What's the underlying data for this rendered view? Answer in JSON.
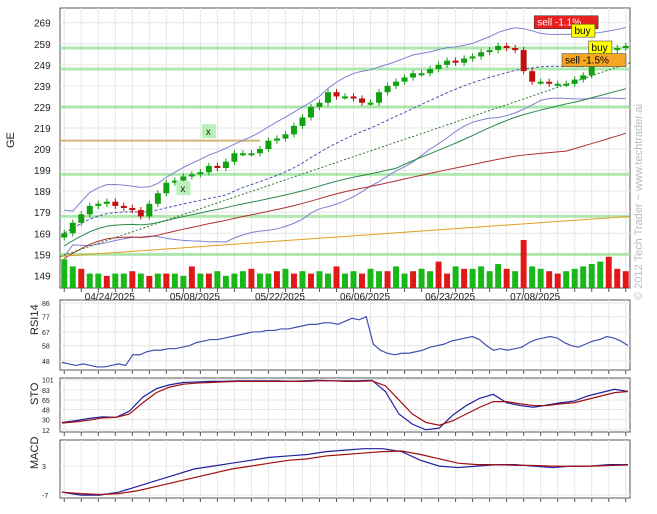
{
  "watermark": "© 2012 Tech Trader ~ www.techtrader.ai",
  "chart_data": [
    {
      "type": "candlestick",
      "ylabel": "GE",
      "yticks": [
        149,
        159,
        169,
        179,
        189,
        199,
        209,
        219,
        229,
        239,
        249,
        259,
        269
      ],
      "ylim": [
        143,
        276
      ],
      "date_labels": [
        "04/24/2025",
        "05/08/2025",
        "05/22/2025",
        "06/06/2025",
        "06/23/2025",
        "07/08/2025"
      ],
      "date_positions": [
        5,
        15,
        25,
        35,
        45,
        55
      ],
      "n_bars": 67,
      "close": [
        169,
        174,
        178,
        182,
        183,
        184,
        182,
        181,
        180,
        177,
        183,
        188,
        193,
        194,
        196,
        197,
        198,
        201,
        200,
        203,
        207,
        207,
        207,
        209,
        213,
        214,
        216,
        220,
        224,
        229,
        231,
        236,
        234,
        234,
        233,
        231,
        231,
        236,
        239,
        241,
        243,
        245,
        245,
        247,
        249,
        251,
        250,
        252,
        253,
        255,
        256,
        258,
        257,
        256,
        246,
        241,
        241,
        240,
        240,
        240,
        242,
        244,
        252,
        253,
        256,
        257,
        258
      ],
      "volume_color": [
        "green",
        "green",
        "red",
        "green",
        "green",
        "red",
        "green",
        "green",
        "red",
        "green",
        "red",
        "green",
        "red",
        "green",
        "green",
        "red",
        "green",
        "red",
        "green",
        "green",
        "green",
        "green",
        "red",
        "green",
        "green",
        "red",
        "green",
        "red",
        "green",
        "red",
        "green",
        "green",
        "red",
        "green",
        "green",
        "red",
        "green",
        "green",
        "red",
        "green",
        "green",
        "red",
        "green",
        "green",
        "red",
        "red",
        "green",
        "red",
        "green",
        "green",
        "green",
        "green",
        "red",
        "green",
        "red",
        "green",
        "green",
        "red",
        "red",
        "green",
        "green",
        "green",
        "green",
        "green",
        "red",
        "red",
        "red"
      ],
      "volume_level": [
        0.6,
        0.45,
        0.4,
        0.3,
        0.3,
        0.25,
        0.3,
        0.3,
        0.35,
        0.3,
        0.25,
        0.3,
        0.3,
        0.3,
        0.25,
        0.45,
        0.3,
        0.3,
        0.35,
        0.25,
        0.3,
        0.35,
        0.4,
        0.3,
        0.3,
        0.35,
        0.4,
        0.3,
        0.35,
        0.3,
        0.35,
        0.3,
        0.45,
        0.3,
        0.35,
        0.3,
        0.4,
        0.35,
        0.35,
        0.45,
        0.3,
        0.35,
        0.4,
        0.35,
        0.55,
        0.3,
        0.45,
        0.4,
        0.4,
        0.45,
        0.35,
        0.5,
        0.4,
        0.35,
        1.0,
        0.45,
        0.4,
        0.35,
        0.3,
        0.35,
        0.4,
        0.45,
        0.5,
        0.55,
        0.65,
        0.4,
        0.35
      ],
      "support_lines": [
        159,
        177,
        197,
        229,
        247,
        257
      ],
      "annotations": [
        {
          "label": "sell -1.1%",
          "bg": "#e82020",
          "fg": "#ffffff",
          "at_bar": 59,
          "y": 269
        },
        {
          "label": "buy",
          "bg": "#ffff00",
          "fg": "#000000",
          "at_bar": 61,
          "y": 265
        },
        {
          "label": "buy",
          "bg": "#ffff00",
          "fg": "#000000",
          "at_bar": 63,
          "y": 257
        },
        {
          "label": "sell -1.5%",
          "bg": "#f5a623",
          "fg": "#000000",
          "at_bar": 63,
          "y": 251
        }
      ],
      "markers": [
        {
          "label": "x",
          "at_bar": 17,
          "y": 217
        },
        {
          "label": "x",
          "at_bar": 14,
          "y": 190
        }
      ]
    },
    {
      "type": "line",
      "ylabel": "RSI14",
      "yticks": [
        48,
        58,
        67,
        77,
        86
      ],
      "ylim": [
        42,
        88
      ],
      "values": [
        47,
        46,
        45,
        46,
        45,
        44,
        44,
        45,
        46,
        45,
        52,
        52,
        54,
        55,
        55,
        56,
        56,
        57,
        58,
        60,
        61,
        62,
        62,
        63,
        64,
        65,
        66,
        67,
        67,
        68,
        68,
        69,
        69,
        70,
        71,
        72,
        72,
        73,
        73,
        72,
        74,
        76,
        75,
        77,
        59,
        55,
        53,
        52,
        53,
        53,
        54,
        55,
        57,
        58,
        59,
        61,
        62,
        63,
        64,
        62,
        58,
        55,
        56,
        55,
        56,
        57,
        60,
        62,
        63,
        64,
        63,
        60,
        58,
        57,
        59,
        61,
        62,
        64,
        63,
        61,
        58
      ]
    },
    {
      "type": "line",
      "ylabel": "STO",
      "yticks": [
        12,
        30,
        48,
        65,
        83,
        101
      ],
      "ylim": [
        8,
        104
      ],
      "series": [
        {
          "color": "#2020a0",
          "values": [
            25,
            28,
            32,
            35,
            34,
            45,
            70,
            85,
            92,
            96,
            97,
            98,
            98,
            99,
            99,
            99,
            99,
            98,
            99,
            100,
            99,
            99,
            99,
            100,
            80,
            40,
            22,
            12,
            15,
            38,
            55,
            68,
            75,
            60,
            55,
            52,
            56,
            60,
            63,
            72,
            78,
            84,
            80
          ]
        },
        {
          "color": "#a01010",
          "values": [
            24,
            26,
            29,
            33,
            34,
            40,
            60,
            78,
            88,
            93,
            95,
            96,
            97,
            98,
            98,
            98,
            98,
            98,
            98,
            99,
            99,
            98,
            98,
            99,
            90,
            65,
            40,
            25,
            20,
            28,
            40,
            52,
            62,
            62,
            58,
            55,
            55,
            58,
            60,
            66,
            72,
            78,
            80
          ]
        }
      ]
    },
    {
      "type": "line",
      "ylabel": "MACD",
      "yticks": [
        -7,
        3
      ],
      "ylim": [
        -8,
        12
      ],
      "series": [
        {
          "color": "#2020a0",
          "values": [
            -6,
            -7,
            -7,
            -6,
            -4,
            -2,
            0,
            2,
            3,
            4,
            5,
            6,
            6.5,
            7,
            8,
            8.5,
            9,
            9,
            8,
            5,
            3,
            2.5,
            3,
            3.5,
            3.5,
            3,
            2.5,
            3,
            3,
            3.5,
            3.5
          ]
        },
        {
          "color": "#a01010",
          "values": [
            -6,
            -6.5,
            -6.8,
            -6.5,
            -5.5,
            -4,
            -2.5,
            -1,
            0.5,
            2,
            3,
            4,
            5,
            5.5,
            6.5,
            7,
            7.5,
            8,
            8.2,
            7,
            5.5,
            4,
            3.5,
            3.5,
            3.3,
            3.2,
            3,
            2.9,
            3,
            3.2,
            3.4
          ]
        }
      ]
    }
  ]
}
